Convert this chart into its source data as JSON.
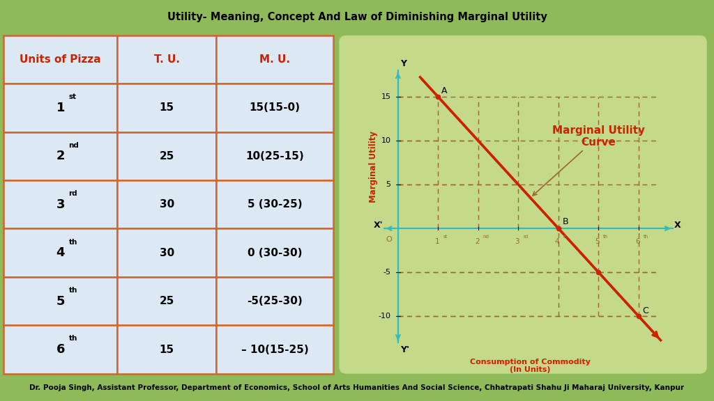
{
  "title": "Utility- Meaning, Concept And Law of Diminishing Marginal Utility",
  "title_fontsize": 10.5,
  "footer": "Dr. Pooja Singh, Assistant Professor, Department of Economics, School of Arts Humanities And Social Science, Chhatrapati Shahu Ji Maharaj University, Kanpur",
  "footer_fontsize": 7.5,
  "bg_green": "#8fba5a",
  "bg_white": "#ffffff",
  "table_bg": "#dce9f5",
  "table_header_color": "#cc2200",
  "table_border_color": "#cc6633",
  "chart_panel_bg": "#c5d98a",
  "chart_inner_bg": "#c5d98a",
  "line_color": "#cc2200",
  "axis_color": "#33bbbb",
  "dashed_color": "#996633",
  "ylabel_color": "#cc2200",
  "xlabel_color": "#cc2200",
  "curve_label_color": "#cc2200",
  "table_rows": [
    [
      "Units of Pizza",
      "T. U.",
      "M. U."
    ],
    [
      "1",
      "15",
      "15(15-0)"
    ],
    [
      "2",
      "25",
      "10(25-15)"
    ],
    [
      "3",
      "30",
      "5 (30-25)"
    ],
    [
      "4",
      "30",
      "0 (30-30)"
    ],
    [
      "5",
      "25",
      "-5(25-30)"
    ],
    [
      "6",
      "15",
      "– 10(15-25)"
    ]
  ],
  "superscripts": [
    "st",
    "nd",
    "rd",
    "th",
    "th",
    "th"
  ],
  "x_ticks": [
    1,
    2,
    3,
    4,
    5,
    6
  ],
  "y_ticks": [
    -10,
    -5,
    5,
    10,
    15
  ],
  "xlim": [
    -0.4,
    6.9
  ],
  "ylim": [
    -13.5,
    18.5
  ],
  "ylabel_text": "Marginal Utility",
  "xlabel_text": "Consumption of Commodity\n(In Units)",
  "curve_label": "Marginal Utility\nCurve"
}
